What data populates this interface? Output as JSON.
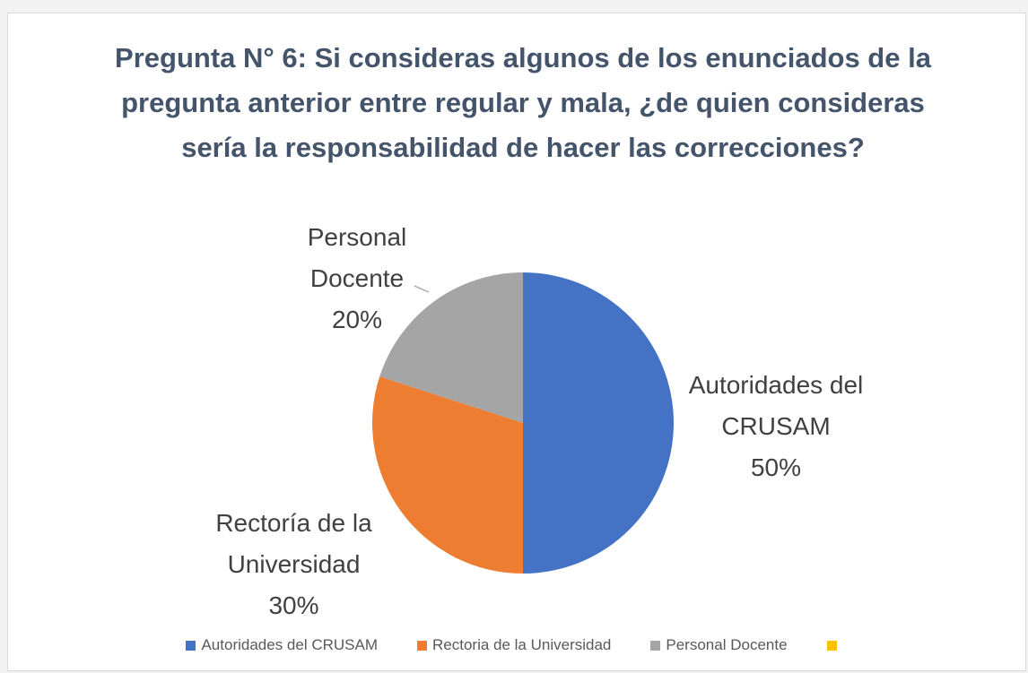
{
  "chart_data": {
    "type": "pie",
    "title": "Pregunta N° 6: Si consideras algunos de los enunciados de la pregunta anterior entre regular y mala, ¿de quien consideras sería la responsabilidad de hacer las correcciones?",
    "categories": [
      "Autoridades del CRUSAM",
      "Rectoria de la Universidad",
      "Personal Docente",
      null
    ],
    "label_names": [
      "Autoridades del CRUSAM",
      "Rectoría de la Universidad",
      "Personal Docente",
      null
    ],
    "values": [
      50,
      30,
      20,
      null
    ],
    "value_labels": [
      "50%",
      "30%",
      "20%",
      null
    ],
    "colors": [
      "#4472c4",
      "#ed7d31",
      "#a5a5a5",
      "#ffc000"
    ],
    "legend": "bottom"
  }
}
